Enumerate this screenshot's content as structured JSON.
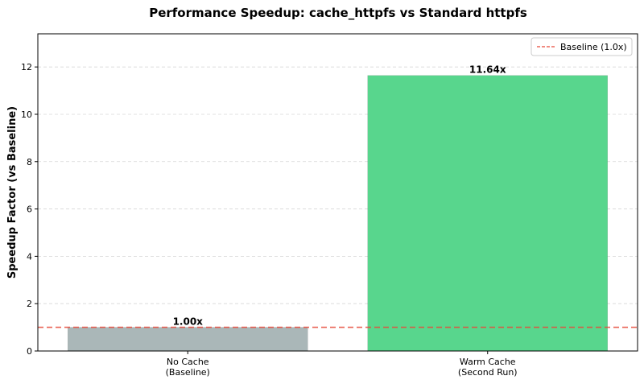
{
  "chart_data": {
    "type": "bar",
    "title": "Performance Speedup: cache_httpfs vs Standard httpfs",
    "xlabel": "",
    "ylabel": "Speedup Factor (vs Baseline)",
    "categories": [
      [
        "No Cache",
        "(Baseline)"
      ],
      [
        "Warm Cache",
        "(Second Run)"
      ]
    ],
    "values": [
      1.0,
      11.64
    ],
    "value_labels": [
      "1.00x",
      "11.64x"
    ],
    "bar_colors": [
      "#aab7b8",
      "#58d68d"
    ],
    "ylim": [
      0,
      13.4
    ],
    "yticks": [
      0,
      2,
      4,
      6,
      8,
      10,
      12
    ],
    "grid": "y-dashed",
    "baseline": {
      "value": 1.0,
      "label": "Baseline (1.0x)",
      "color": "#e74c3c",
      "style": "dashed"
    },
    "legend_position": "top-right"
  }
}
